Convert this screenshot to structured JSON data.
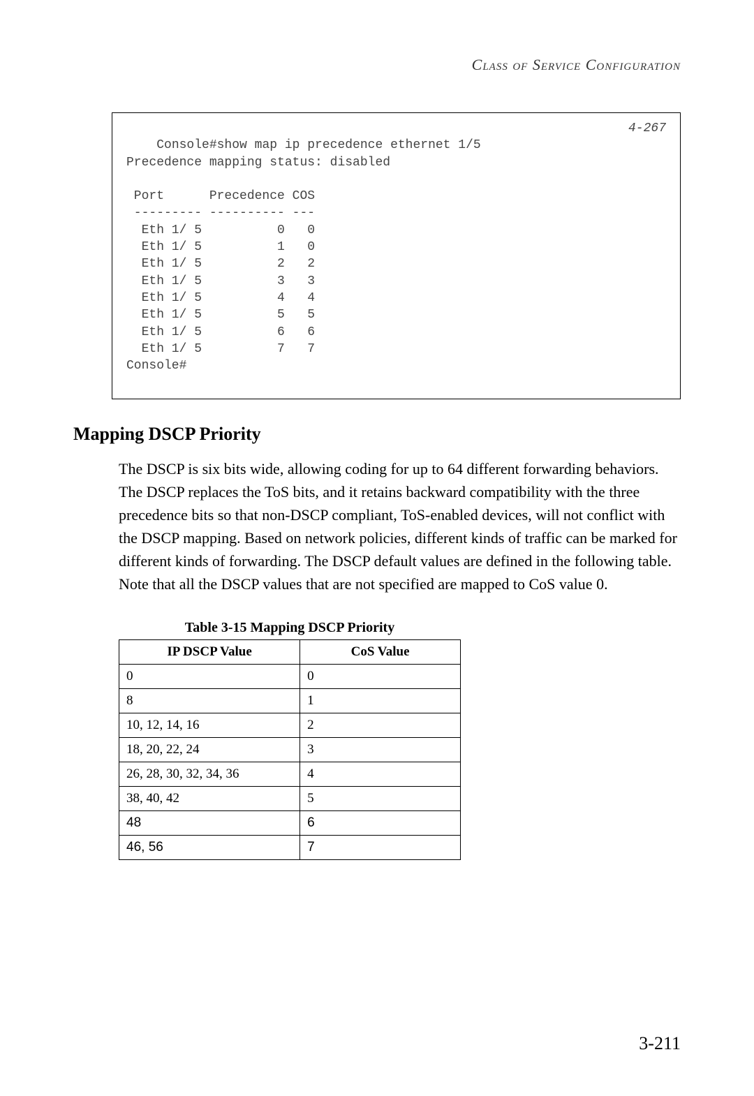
{
  "header": {
    "title": "Class of Service Configuration"
  },
  "console": {
    "ref": "4-267",
    "lines": "Console#show map ip precedence ethernet 1/5\nPrecedence mapping status: disabled\n\n Port      Precedence COS\n --------- ---------- ---\n  Eth 1/ 5          0   0\n  Eth 1/ 5          1   0\n  Eth 1/ 5          2   2\n  Eth 1/ 5          3   3\n  Eth 1/ 5          4   4\n  Eth 1/ 5          5   5\n  Eth 1/ 5          6   6\n  Eth 1/ 5          7   7\nConsole#"
  },
  "section": {
    "heading": "Mapping DSCP Priority",
    "body": "The DSCP is six bits wide, allowing coding for up to 64 different forwarding behaviors. The DSCP replaces the ToS bits, and it retains backward compatibility with the three precedence bits so that non-DSCP compliant, ToS-enabled devices, will not conflict with the DSCP mapping. Based on network policies, different kinds of traffic can be marked for different kinds of forwarding. The DSCP default values are defined in the following table. Note that all the DSCP values that are not specified are mapped to CoS value 0."
  },
  "table": {
    "caption": "Table 3-15  Mapping DSCP Priority",
    "columns": [
      "IP DSCP Value",
      "CoS Value"
    ],
    "rows": [
      {
        "dscp": "0",
        "cos": "0",
        "sans": false
      },
      {
        "dscp": "8",
        "cos": "1",
        "sans": false
      },
      {
        "dscp": "10, 12, 14, 16",
        "cos": "2",
        "sans": false
      },
      {
        "dscp": "18, 20, 22, 24",
        "cos": "3",
        "sans": false
      },
      {
        "dscp": "26, 28, 30, 32, 34, 36",
        "cos": "4",
        "sans": false
      },
      {
        "dscp": "38, 40, 42",
        "cos": "5",
        "sans": false
      },
      {
        "dscp": "48",
        "cos": "6",
        "sans": true
      },
      {
        "dscp": "46, 56",
        "cos": "7",
        "sans": true
      }
    ]
  },
  "pageNumber": "3-211"
}
